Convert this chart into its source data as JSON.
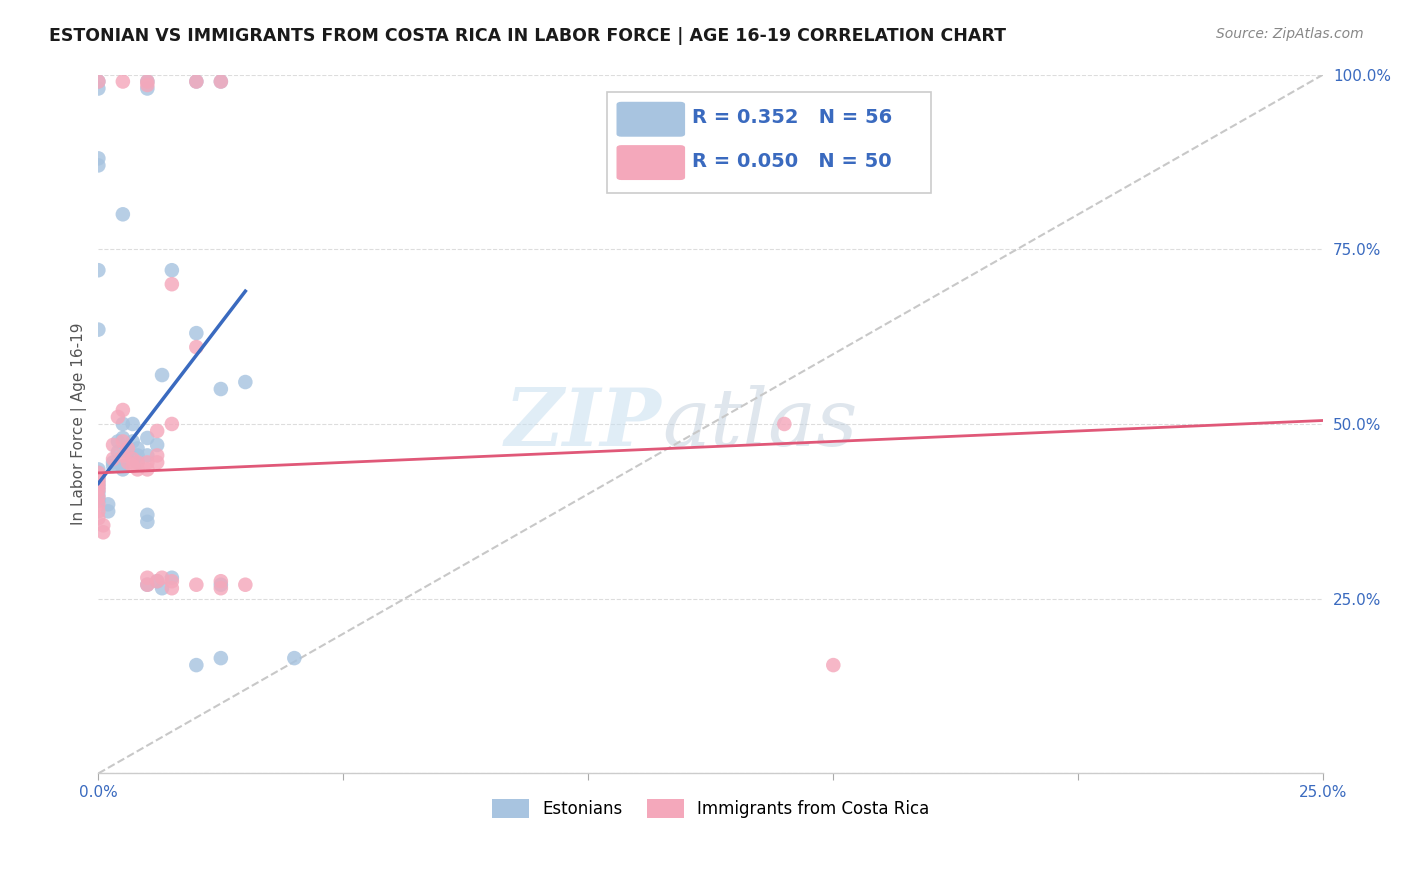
{
  "title": "ESTONIAN VS IMMIGRANTS FROM COSTA RICA IN LABOR FORCE | AGE 16-19 CORRELATION CHART",
  "source": "Source: ZipAtlas.com",
  "ylabel": "In Labor Force | Age 16-19",
  "legend_labels": [
    "Estonians",
    "Immigrants from Costa Rica"
  ],
  "R_blue": 0.352,
  "N_blue": 56,
  "R_pink": 0.05,
  "N_pink": 50,
  "blue_color": "#a8c4e0",
  "pink_color": "#f4a8bb",
  "blue_line_color": "#3a6abf",
  "pink_line_color": "#e05878",
  "diag_color": "#c8c8c8",
  "watermark_zip": "ZIP",
  "watermark_atlas": "atlas",
  "xlim": [
    0.0,
    0.25
  ],
  "ylim": [
    0.0,
    1.0
  ],
  "x_tick_positions": [
    0.0,
    0.05,
    0.1,
    0.15,
    0.2,
    0.25
  ],
  "x_tick_labels": [
    "0.0%",
    "",
    "",
    "",
    "",
    "25.0%"
  ],
  "y_tick_positions": [
    0.0,
    0.25,
    0.5,
    0.75,
    1.0
  ],
  "y_tick_labels": [
    "",
    "25.0%",
    "50.0%",
    "75.0%",
    "100.0%"
  ],
  "blue_points": [
    [
      0.0,
      0.99
    ],
    [
      0.0,
      0.98
    ],
    [
      0.01,
      0.99
    ],
    [
      0.01,
      0.98
    ],
    [
      0.02,
      0.99
    ],
    [
      0.025,
      0.99
    ],
    [
      0.0,
      0.88
    ],
    [
      0.0,
      0.87
    ],
    [
      0.005,
      0.8
    ],
    [
      0.0,
      0.72
    ],
    [
      0.015,
      0.72
    ],
    [
      0.0,
      0.635
    ],
    [
      0.02,
      0.63
    ],
    [
      0.025,
      0.55
    ],
    [
      0.03,
      0.56
    ],
    [
      0.013,
      0.57
    ],
    [
      0.005,
      0.5
    ],
    [
      0.007,
      0.5
    ],
    [
      0.005,
      0.48
    ],
    [
      0.007,
      0.475
    ],
    [
      0.004,
      0.475
    ],
    [
      0.004,
      0.46
    ],
    [
      0.008,
      0.465
    ],
    [
      0.008,
      0.455
    ],
    [
      0.01,
      0.48
    ],
    [
      0.01,
      0.455
    ],
    [
      0.012,
      0.47
    ],
    [
      0.003,
      0.445
    ],
    [
      0.003,
      0.44
    ],
    [
      0.005,
      0.44
    ],
    [
      0.005,
      0.435
    ],
    [
      0.006,
      0.465
    ],
    [
      0.006,
      0.46
    ],
    [
      0.008,
      0.445
    ],
    [
      0.0,
      0.435
    ],
    [
      0.0,
      0.43
    ],
    [
      0.0,
      0.425
    ],
    [
      0.0,
      0.42
    ],
    [
      0.0,
      0.415
    ],
    [
      0.0,
      0.41
    ],
    [
      0.0,
      0.405
    ],
    [
      0.0,
      0.4
    ],
    [
      0.0,
      0.395
    ],
    [
      0.0,
      0.39
    ],
    [
      0.002,
      0.385
    ],
    [
      0.002,
      0.375
    ],
    [
      0.01,
      0.37
    ],
    [
      0.01,
      0.36
    ],
    [
      0.01,
      0.27
    ],
    [
      0.012,
      0.275
    ],
    [
      0.013,
      0.265
    ],
    [
      0.015,
      0.28
    ],
    [
      0.025,
      0.27
    ],
    [
      0.02,
      0.155
    ],
    [
      0.025,
      0.165
    ],
    [
      0.04,
      0.165
    ]
  ],
  "pink_points": [
    [
      0.0,
      0.99
    ],
    [
      0.005,
      0.99
    ],
    [
      0.01,
      0.99
    ],
    [
      0.01,
      0.985
    ],
    [
      0.02,
      0.99
    ],
    [
      0.025,
      0.99
    ],
    [
      0.015,
      0.7
    ],
    [
      0.02,
      0.61
    ],
    [
      0.005,
      0.52
    ],
    [
      0.004,
      0.51
    ],
    [
      0.015,
      0.5
    ],
    [
      0.012,
      0.49
    ],
    [
      0.005,
      0.475
    ],
    [
      0.006,
      0.465
    ],
    [
      0.003,
      0.47
    ],
    [
      0.003,
      0.45
    ],
    [
      0.005,
      0.455
    ],
    [
      0.007,
      0.45
    ],
    [
      0.006,
      0.445
    ],
    [
      0.007,
      0.44
    ],
    [
      0.008,
      0.445
    ],
    [
      0.008,
      0.435
    ],
    [
      0.01,
      0.445
    ],
    [
      0.01,
      0.435
    ],
    [
      0.012,
      0.455
    ],
    [
      0.012,
      0.445
    ],
    [
      0.0,
      0.43
    ],
    [
      0.0,
      0.425
    ],
    [
      0.0,
      0.42
    ],
    [
      0.0,
      0.415
    ],
    [
      0.0,
      0.41
    ],
    [
      0.0,
      0.405
    ],
    [
      0.0,
      0.395
    ],
    [
      0.0,
      0.385
    ],
    [
      0.0,
      0.375
    ],
    [
      0.0,
      0.365
    ],
    [
      0.001,
      0.355
    ],
    [
      0.001,
      0.345
    ],
    [
      0.01,
      0.28
    ],
    [
      0.01,
      0.27
    ],
    [
      0.012,
      0.275
    ],
    [
      0.013,
      0.28
    ],
    [
      0.015,
      0.275
    ],
    [
      0.015,
      0.265
    ],
    [
      0.02,
      0.27
    ],
    [
      0.025,
      0.275
    ],
    [
      0.025,
      0.265
    ],
    [
      0.03,
      0.27
    ],
    [
      0.14,
      0.5
    ],
    [
      0.15,
      0.155
    ]
  ],
  "blue_line": [
    [
      0.0,
      0.415
    ],
    [
      0.03,
      0.69
    ]
  ],
  "pink_line": [
    [
      0.0,
      0.43
    ],
    [
      0.25,
      0.505
    ]
  ]
}
